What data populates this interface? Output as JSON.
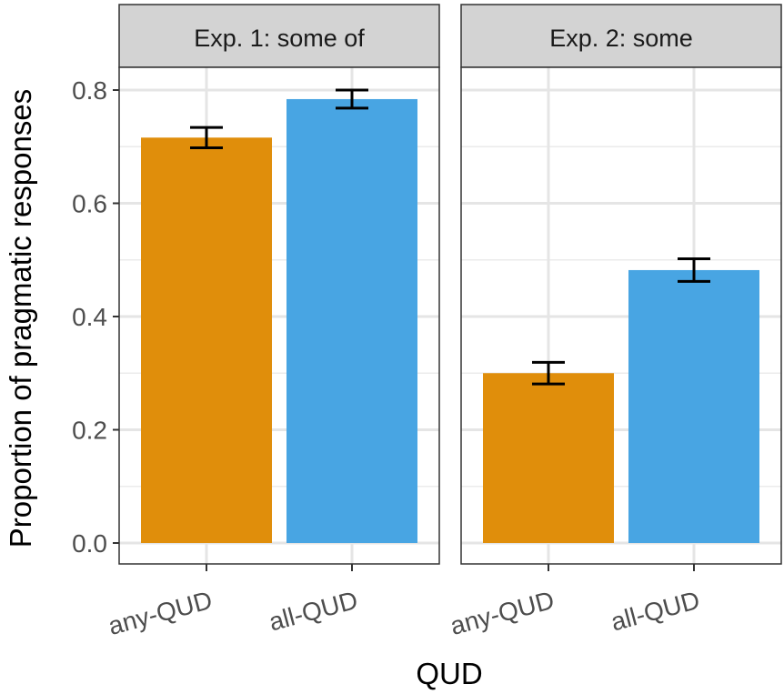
{
  "chart_data": {
    "type": "bar",
    "ylabel": "Proportion of pragmatic responses",
    "xlabel": "QUD",
    "ylim": [
      0,
      0.8
    ],
    "yticks": [
      0.0,
      0.2,
      0.4,
      0.6,
      0.8
    ],
    "ytick_labels": [
      "0.0",
      "0.2",
      "0.4",
      "0.6",
      "0.8"
    ],
    "grid": true,
    "colors": {
      "any-QUD": "#E08E0B",
      "all-QUD": "#48A5E3"
    },
    "panels": [
      {
        "title": "Exp. 1: some of",
        "categories": [
          "any-QUD",
          "all-QUD"
        ],
        "values": [
          0.716,
          0.784
        ],
        "error_low": [
          0.698,
          0.768
        ],
        "error_high": [
          0.734,
          0.8
        ]
      },
      {
        "title": "Exp. 2: some",
        "categories": [
          "any-QUD",
          "all-QUD"
        ],
        "values": [
          0.3,
          0.482
        ],
        "error_low": [
          0.281,
          0.462
        ],
        "error_high": [
          0.319,
          0.502
        ]
      }
    ]
  }
}
